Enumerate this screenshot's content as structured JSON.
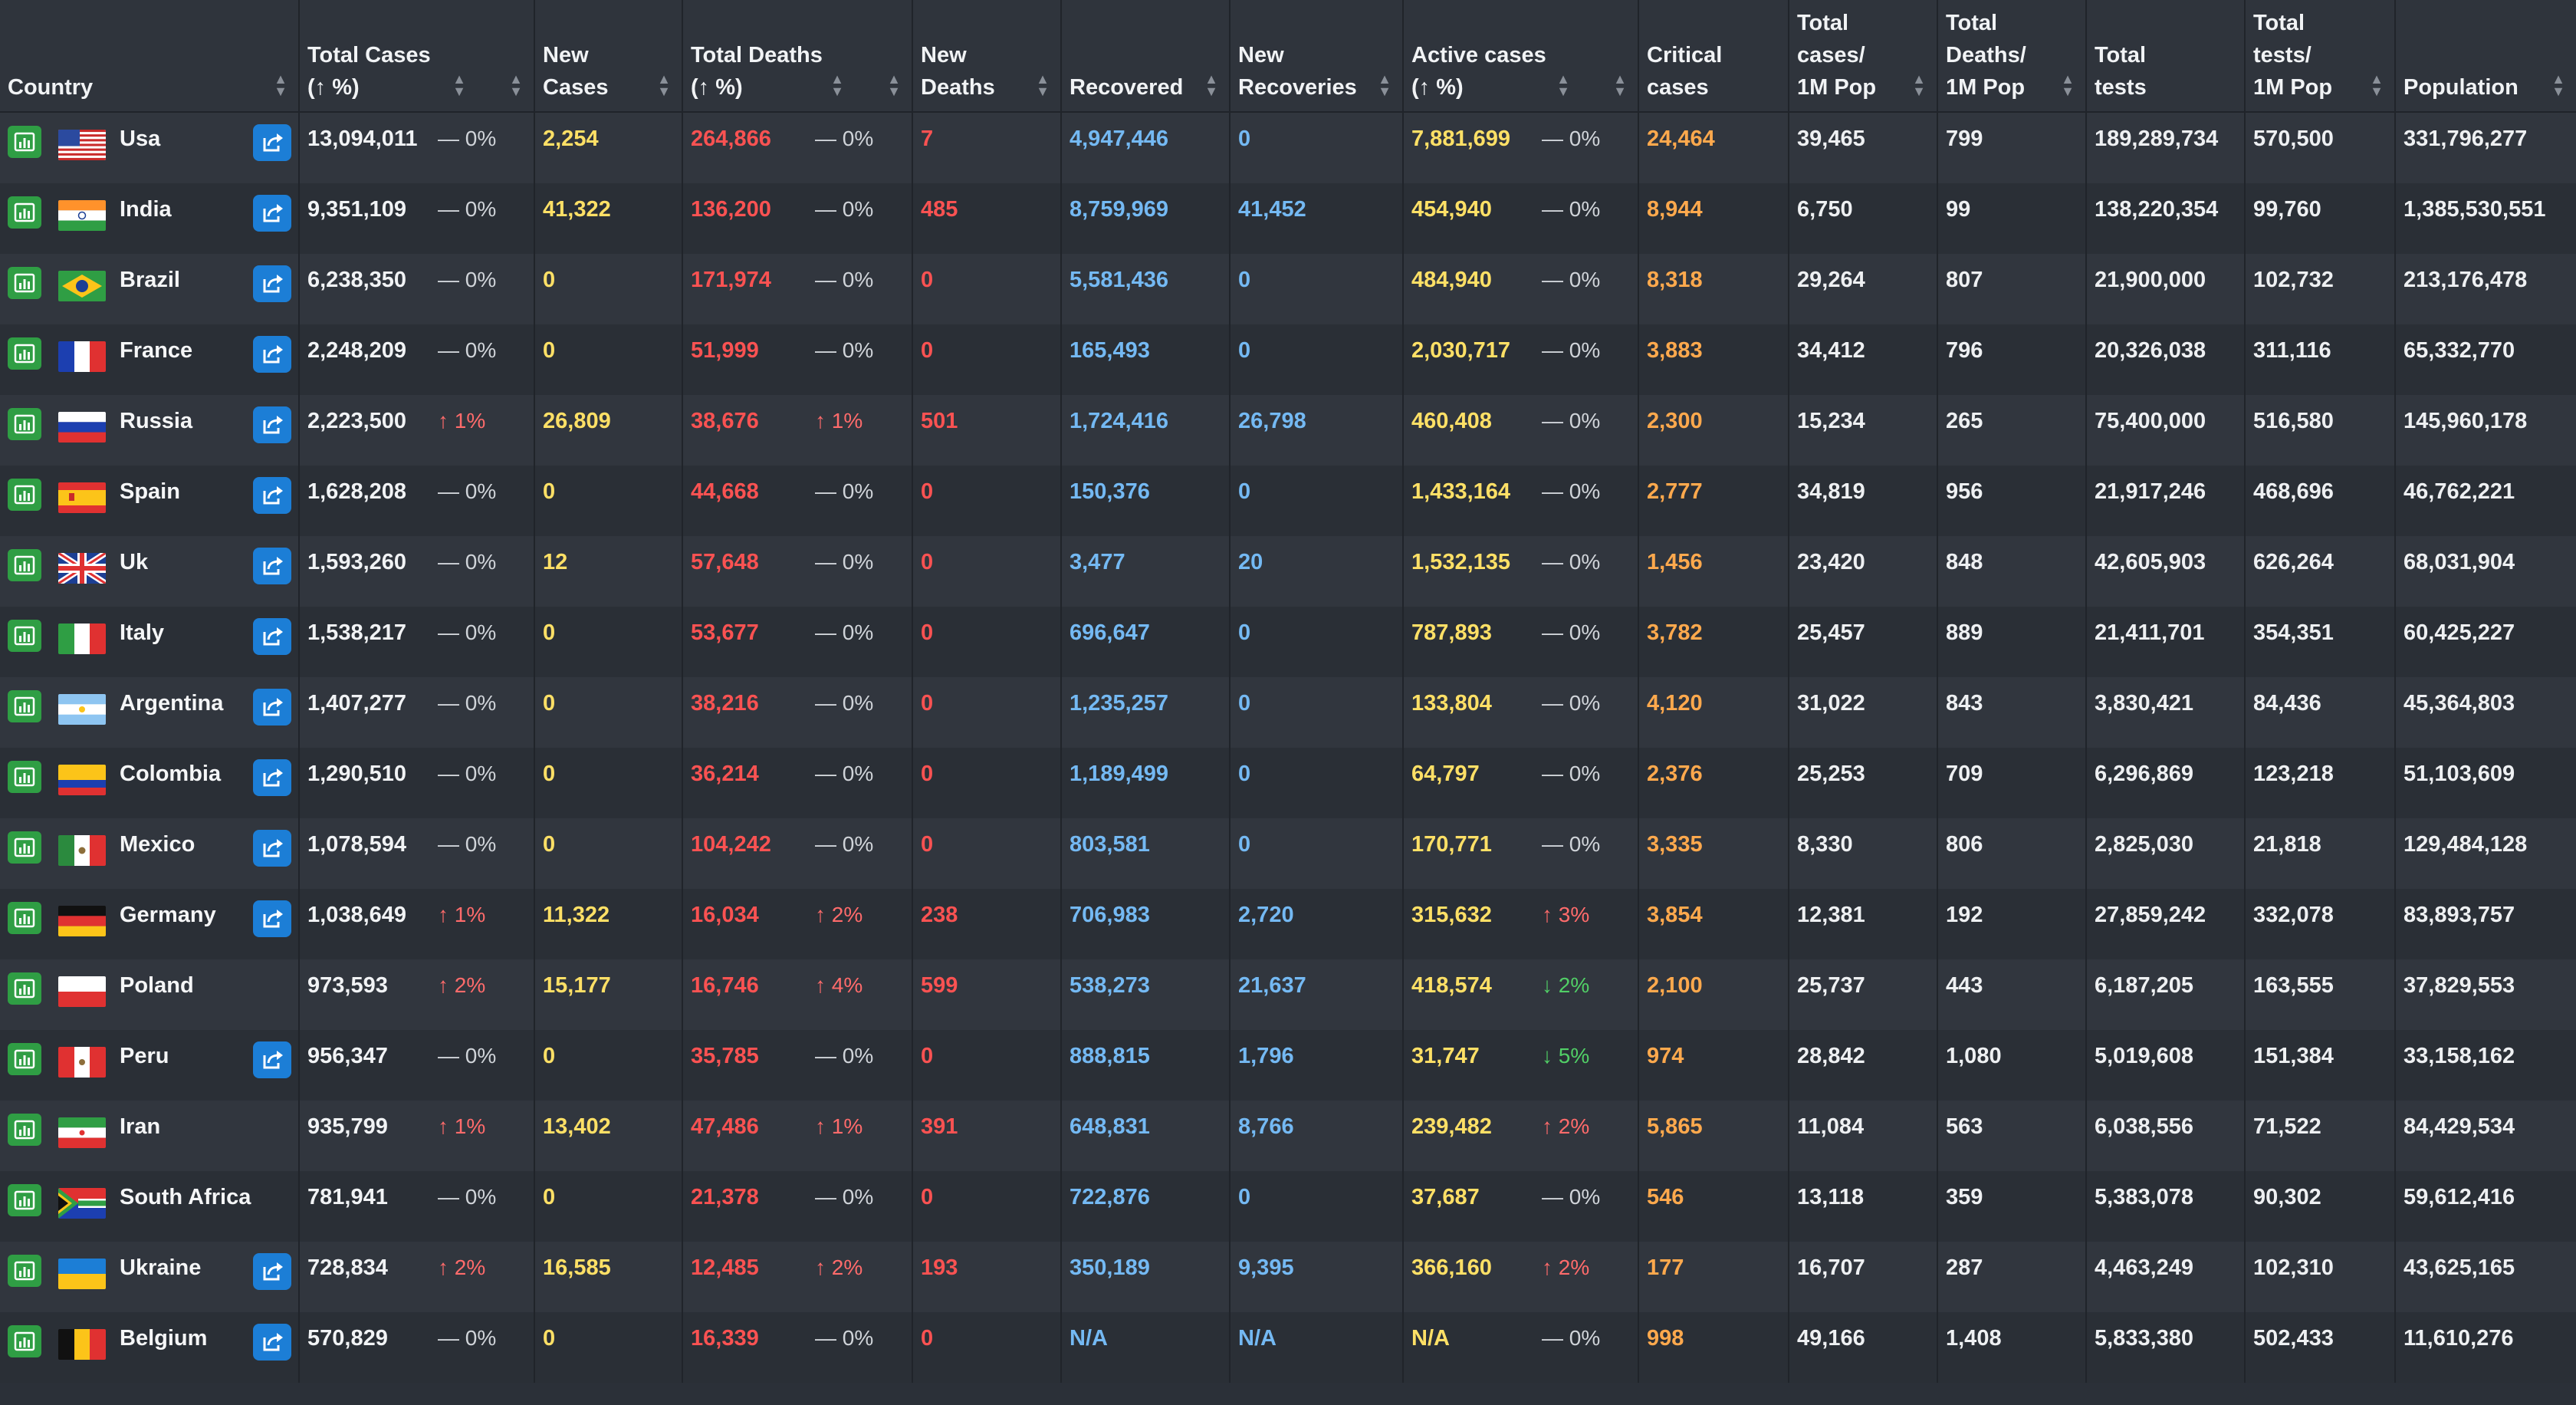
{
  "colors": {
    "chart_btn": "#2f9e44",
    "share_btn": "#1c7ed6",
    "new_cases": "#ffe066",
    "deaths": "#fa5252",
    "recovered": "#74b9f3",
    "active": "#ffe066",
    "critical": "#ffa94d"
  },
  "headers": {
    "country": "Country",
    "total_cases": "Total Cases\n(↑ %)",
    "new_cases": "New\nCases",
    "total_deaths": "Total Deaths\n(↑ %)",
    "new_deaths": "New\nDeaths",
    "recovered": "Recovered",
    "new_recoveries": "New\nRecoveries",
    "active_cases": "Active cases\n(↑ %)",
    "critical": "Critical\ncases",
    "cases_per_m": "Total\ncases/\n1M Pop",
    "deaths_per_m": "Total\nDeaths/\n1M Pop",
    "total_tests": "Total\ntests",
    "tests_per_m": "Total\ntests/\n1M Pop",
    "population": "Population"
  },
  "rows": [
    {
      "country": "Usa",
      "flag": "us",
      "share": true,
      "total_cases": "13,094,011",
      "tc_pct": "— 0%",
      "tc_dir": "flat",
      "new_cases": "2,254",
      "total_deaths": "264,866",
      "td_pct": "— 0%",
      "td_dir": "flat",
      "new_deaths": "7",
      "recovered": "4,947,446",
      "new_recoveries": "0",
      "active": "7,881,699",
      "ac_pct": "— 0%",
      "ac_dir": "flat",
      "critical": "24,464",
      "cases_per_m": "39,465",
      "deaths_per_m": "799",
      "tests": "189,289,734",
      "tests_per_m": "570,500",
      "population": "331,796,277"
    },
    {
      "country": "India",
      "flag": "in",
      "share": true,
      "total_cases": "9,351,109",
      "tc_pct": "— 0%",
      "tc_dir": "flat",
      "new_cases": "41,322",
      "total_deaths": "136,200",
      "td_pct": "— 0%",
      "td_dir": "flat",
      "new_deaths": "485",
      "recovered": "8,759,969",
      "new_recoveries": "41,452",
      "active": "454,940",
      "ac_pct": "— 0%",
      "ac_dir": "flat",
      "critical": "8,944",
      "cases_per_m": "6,750",
      "deaths_per_m": "99",
      "tests": "138,220,354",
      "tests_per_m": "99,760",
      "population": "1,385,530,551"
    },
    {
      "country": "Brazil",
      "flag": "br",
      "share": true,
      "total_cases": "6,238,350",
      "tc_pct": "— 0%",
      "tc_dir": "flat",
      "new_cases": "0",
      "total_deaths": "171,974",
      "td_pct": "— 0%",
      "td_dir": "flat",
      "new_deaths": "0",
      "recovered": "5,581,436",
      "new_recoveries": "0",
      "active": "484,940",
      "ac_pct": "— 0%",
      "ac_dir": "flat",
      "critical": "8,318",
      "cases_per_m": "29,264",
      "deaths_per_m": "807",
      "tests": "21,900,000",
      "tests_per_m": "102,732",
      "population": "213,176,478"
    },
    {
      "country": "France",
      "flag": "fr",
      "share": true,
      "total_cases": "2,248,209",
      "tc_pct": "— 0%",
      "tc_dir": "flat",
      "new_cases": "0",
      "total_deaths": "51,999",
      "td_pct": "— 0%",
      "td_dir": "flat",
      "new_deaths": "0",
      "recovered": "165,493",
      "new_recoveries": "0",
      "active": "2,030,717",
      "ac_pct": "— 0%",
      "ac_dir": "flat",
      "critical": "3,883",
      "cases_per_m": "34,412",
      "deaths_per_m": "796",
      "tests": "20,326,038",
      "tests_per_m": "311,116",
      "population": "65,332,770"
    },
    {
      "country": "Russia",
      "flag": "ru",
      "share": true,
      "total_cases": "2,223,500",
      "tc_pct": "↑ 1%",
      "tc_dir": "up",
      "new_cases": "26,809",
      "total_deaths": "38,676",
      "td_pct": "↑ 1%",
      "td_dir": "up",
      "new_deaths": "501",
      "recovered": "1,724,416",
      "new_recoveries": "26,798",
      "active": "460,408",
      "ac_pct": "— 0%",
      "ac_dir": "flat",
      "critical": "2,300",
      "cases_per_m": "15,234",
      "deaths_per_m": "265",
      "tests": "75,400,000",
      "tests_per_m": "516,580",
      "population": "145,960,178"
    },
    {
      "country": "Spain",
      "flag": "es",
      "share": true,
      "total_cases": "1,628,208",
      "tc_pct": "— 0%",
      "tc_dir": "flat",
      "new_cases": "0",
      "total_deaths": "44,668",
      "td_pct": "— 0%",
      "td_dir": "flat",
      "new_deaths": "0",
      "recovered": "150,376",
      "new_recoveries": "0",
      "active": "1,433,164",
      "ac_pct": "— 0%",
      "ac_dir": "flat",
      "critical": "2,777",
      "cases_per_m": "34,819",
      "deaths_per_m": "956",
      "tests": "21,917,246",
      "tests_per_m": "468,696",
      "population": "46,762,221"
    },
    {
      "country": "Uk",
      "flag": "uk",
      "share": true,
      "total_cases": "1,593,260",
      "tc_pct": "— 0%",
      "tc_dir": "flat",
      "new_cases": "12",
      "total_deaths": "57,648",
      "td_pct": "— 0%",
      "td_dir": "flat",
      "new_deaths": "0",
      "recovered": "3,477",
      "new_recoveries": "20",
      "active": "1,532,135",
      "ac_pct": "— 0%",
      "ac_dir": "flat",
      "critical": "1,456",
      "cases_per_m": "23,420",
      "deaths_per_m": "848",
      "tests": "42,605,903",
      "tests_per_m": "626,264",
      "population": "68,031,904"
    },
    {
      "country": "Italy",
      "flag": "it",
      "share": true,
      "total_cases": "1,538,217",
      "tc_pct": "— 0%",
      "tc_dir": "flat",
      "new_cases": "0",
      "total_deaths": "53,677",
      "td_pct": "— 0%",
      "td_dir": "flat",
      "new_deaths": "0",
      "recovered": "696,647",
      "new_recoveries": "0",
      "active": "787,893",
      "ac_pct": "— 0%",
      "ac_dir": "flat",
      "critical": "3,782",
      "cases_per_m": "25,457",
      "deaths_per_m": "889",
      "tests": "21,411,701",
      "tests_per_m": "354,351",
      "population": "60,425,227"
    },
    {
      "country": "Argentina",
      "flag": "ar",
      "share": true,
      "total_cases": "1,407,277",
      "tc_pct": "— 0%",
      "tc_dir": "flat",
      "new_cases": "0",
      "total_deaths": "38,216",
      "td_pct": "— 0%",
      "td_dir": "flat",
      "new_deaths": "0",
      "recovered": "1,235,257",
      "new_recoveries": "0",
      "active": "133,804",
      "ac_pct": "— 0%",
      "ac_dir": "flat",
      "critical": "4,120",
      "cases_per_m": "31,022",
      "deaths_per_m": "843",
      "tests": "3,830,421",
      "tests_per_m": "84,436",
      "population": "45,364,803"
    },
    {
      "country": "Colombia",
      "flag": "co",
      "share": true,
      "total_cases": "1,290,510",
      "tc_pct": "— 0%",
      "tc_dir": "flat",
      "new_cases": "0",
      "total_deaths": "36,214",
      "td_pct": "— 0%",
      "td_dir": "flat",
      "new_deaths": "0",
      "recovered": "1,189,499",
      "new_recoveries": "0",
      "active": "64,797",
      "ac_pct": "— 0%",
      "ac_dir": "flat",
      "critical": "2,376",
      "cases_per_m": "25,253",
      "deaths_per_m": "709",
      "tests": "6,296,869",
      "tests_per_m": "123,218",
      "population": "51,103,609"
    },
    {
      "country": "Mexico",
      "flag": "mx",
      "share": true,
      "total_cases": "1,078,594",
      "tc_pct": "— 0%",
      "tc_dir": "flat",
      "new_cases": "0",
      "total_deaths": "104,242",
      "td_pct": "— 0%",
      "td_dir": "flat",
      "new_deaths": "0",
      "recovered": "803,581",
      "new_recoveries": "0",
      "active": "170,771",
      "ac_pct": "— 0%",
      "ac_dir": "flat",
      "critical": "3,335",
      "cases_per_m": "8,330",
      "deaths_per_m": "806",
      "tests": "2,825,030",
      "tests_per_m": "21,818",
      "population": "129,484,128"
    },
    {
      "country": "Germany",
      "flag": "de",
      "share": true,
      "total_cases": "1,038,649",
      "tc_pct": "↑ 1%",
      "tc_dir": "up",
      "new_cases": "11,322",
      "total_deaths": "16,034",
      "td_pct": "↑ 2%",
      "td_dir": "up",
      "new_deaths": "238",
      "recovered": "706,983",
      "new_recoveries": "2,720",
      "active": "315,632",
      "ac_pct": "↑ 3%",
      "ac_dir": "up",
      "critical": "3,854",
      "cases_per_m": "12,381",
      "deaths_per_m": "192",
      "tests": "27,859,242",
      "tests_per_m": "332,078",
      "population": "83,893,757"
    },
    {
      "country": "Poland",
      "flag": "pl",
      "share": false,
      "total_cases": "973,593",
      "tc_pct": "↑ 2%",
      "tc_dir": "up",
      "new_cases": "15,177",
      "total_deaths": "16,746",
      "td_pct": "↑ 4%",
      "td_dir": "up",
      "new_deaths": "599",
      "recovered": "538,273",
      "new_recoveries": "21,637",
      "active": "418,574",
      "ac_pct": "↓ 2%",
      "ac_dir": "down",
      "critical": "2,100",
      "cases_per_m": "25,737",
      "deaths_per_m": "443",
      "tests": "6,187,205",
      "tests_per_m": "163,555",
      "population": "37,829,553"
    },
    {
      "country": "Peru",
      "flag": "pe",
      "share": true,
      "total_cases": "956,347",
      "tc_pct": "— 0%",
      "tc_dir": "flat",
      "new_cases": "0",
      "total_deaths": "35,785",
      "td_pct": "— 0%",
      "td_dir": "flat",
      "new_deaths": "0",
      "recovered": "888,815",
      "new_recoveries": "1,796",
      "active": "31,747",
      "ac_pct": "↓ 5%",
      "ac_dir": "down",
      "critical": "974",
      "cases_per_m": "28,842",
      "deaths_per_m": "1,080",
      "tests": "5,019,608",
      "tests_per_m": "151,384",
      "population": "33,158,162"
    },
    {
      "country": "Iran",
      "flag": "ir",
      "share": false,
      "total_cases": "935,799",
      "tc_pct": "↑ 1%",
      "tc_dir": "up",
      "new_cases": "13,402",
      "total_deaths": "47,486",
      "td_pct": "↑ 1%",
      "td_dir": "up",
      "new_deaths": "391",
      "recovered": "648,831",
      "new_recoveries": "8,766",
      "active": "239,482",
      "ac_pct": "↑ 2%",
      "ac_dir": "up",
      "critical": "5,865",
      "cases_per_m": "11,084",
      "deaths_per_m": "563",
      "tests": "6,038,556",
      "tests_per_m": "71,522",
      "population": "84,429,534"
    },
    {
      "country": "South Africa",
      "flag": "za",
      "share": false,
      "total_cases": "781,941",
      "tc_pct": "— 0%",
      "tc_dir": "flat",
      "new_cases": "0",
      "total_deaths": "21,378",
      "td_pct": "— 0%",
      "td_dir": "flat",
      "new_deaths": "0",
      "recovered": "722,876",
      "new_recoveries": "0",
      "active": "37,687",
      "ac_pct": "— 0%",
      "ac_dir": "flat",
      "critical": "546",
      "cases_per_m": "13,118",
      "deaths_per_m": "359",
      "tests": "5,383,078",
      "tests_per_m": "90,302",
      "population": "59,612,416"
    },
    {
      "country": "Ukraine",
      "flag": "ua",
      "share": true,
      "total_cases": "728,834",
      "tc_pct": "↑ 2%",
      "tc_dir": "up",
      "new_cases": "16,585",
      "total_deaths": "12,485",
      "td_pct": "↑ 2%",
      "td_dir": "up",
      "new_deaths": "193",
      "recovered": "350,189",
      "new_recoveries": "9,395",
      "active": "366,160",
      "ac_pct": "↑ 2%",
      "ac_dir": "up",
      "critical": "177",
      "cases_per_m": "16,707",
      "deaths_per_m": "287",
      "tests": "4,463,249",
      "tests_per_m": "102,310",
      "population": "43,625,165"
    },
    {
      "country": "Belgium",
      "flag": "be",
      "share": true,
      "total_cases": "570,829",
      "tc_pct": "— 0%",
      "tc_dir": "flat",
      "new_cases": "0",
      "total_deaths": "16,339",
      "td_pct": "— 0%",
      "td_dir": "flat",
      "new_deaths": "0",
      "recovered": "N/A",
      "new_recoveries": "N/A",
      "active": "N/A",
      "ac_pct": "— 0%",
      "ac_dir": "flat",
      "critical": "998",
      "cases_per_m": "49,166",
      "deaths_per_m": "1,408",
      "tests": "5,833,380",
      "tests_per_m": "502,433",
      "population": "11,610,276"
    }
  ]
}
